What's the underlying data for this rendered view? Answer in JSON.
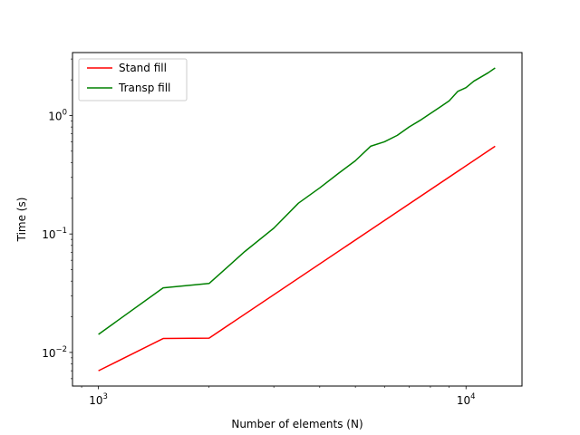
{
  "chart_data": {
    "type": "line",
    "title": "",
    "xlabel": "Number of elements (N)",
    "ylabel": "Time (s)",
    "xscale": "log",
    "yscale": "log",
    "xlim": [
      850,
      14200
    ],
    "ylim": [
      0.0052,
      3.4
    ],
    "grid": false,
    "legend_position": "top-left",
    "x_ticks": [
      {
        "value": 1000,
        "base": "10",
        "exp": "3"
      },
      {
        "value": 10000,
        "base": "10",
        "exp": "4"
      }
    ],
    "y_ticks": [
      {
        "value": 0.01,
        "base": "10",
        "exp": "−2"
      },
      {
        "value": 0.1,
        "base": "10",
        "exp": "−1"
      },
      {
        "value": 1,
        "base": "10",
        "exp": "0"
      }
    ],
    "series": [
      {
        "name": "Stand fill",
        "color": "#ff0000",
        "x": [
          1000,
          1500,
          2000,
          12000
        ],
        "y": [
          0.007,
          0.0131,
          0.0132,
          0.55
        ]
      },
      {
        "name": "Transp fill",
        "color": "#008000",
        "x": [
          1000,
          1500,
          2000,
          2500,
          3000,
          3500,
          4000,
          4500,
          5000,
          5500,
          6000,
          6500,
          7000,
          7500,
          8000,
          8500,
          9000,
          9500,
          10000,
          10500,
          11000,
          11500,
          12000
        ],
        "y": [
          0.0142,
          0.0351,
          0.0382,
          0.071,
          0.112,
          0.182,
          0.245,
          0.325,
          0.415,
          0.55,
          0.6,
          0.68,
          0.8,
          0.91,
          1.04,
          1.18,
          1.33,
          1.6,
          1.72,
          1.95,
          2.12,
          2.3,
          2.52
        ]
      }
    ]
  }
}
